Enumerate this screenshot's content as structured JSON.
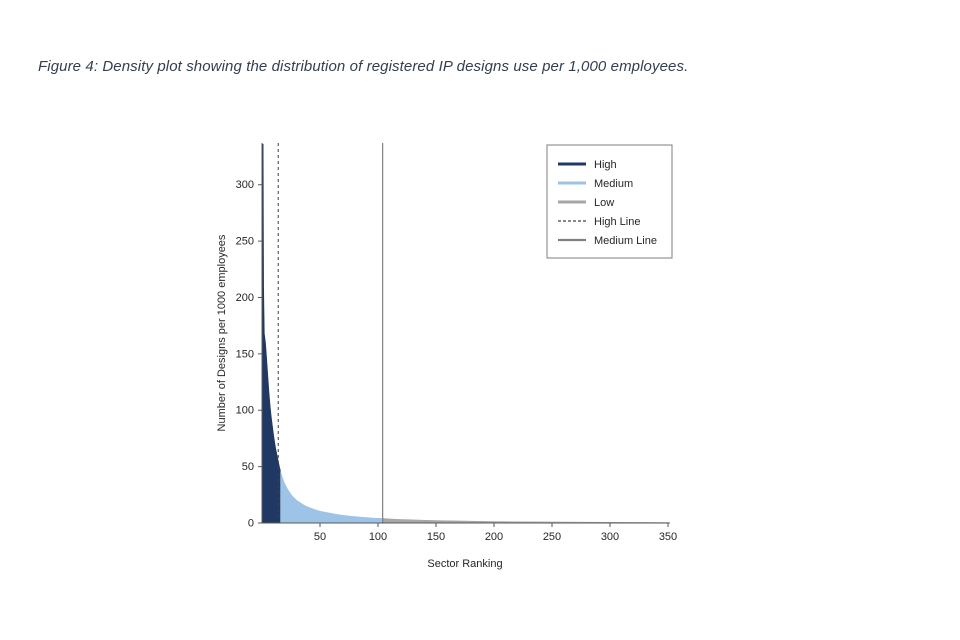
{
  "page": {
    "caption": "Figure 4: Density plot showing the distribution of registered IP designs use per 1,000 employees."
  },
  "chart_data": {
    "type": "area",
    "title": "",
    "xlabel": "Sector Ranking",
    "ylabel": "Number of Designs per 1000 employees",
    "xlim": [
      0,
      350
    ],
    "ylim": [
      0,
      337
    ],
    "x_ticks": [
      50,
      100,
      150,
      200,
      250,
      300,
      350
    ],
    "y_ticks": [
      0,
      50,
      100,
      150,
      200,
      250,
      300
    ],
    "grid": false,
    "legend_position": "top-right",
    "segments": [
      {
        "name": "High",
        "color": "#1f3864",
        "points": [
          [
            0,
            336
          ],
          [
            1,
            336
          ],
          [
            1.4,
            210
          ],
          [
            2,
            168
          ],
          [
            3,
            160
          ],
          [
            4,
            146
          ],
          [
            5,
            131
          ],
          [
            6,
            116
          ],
          [
            7,
            104
          ],
          [
            8,
            94
          ],
          [
            9,
            86
          ],
          [
            10,
            78
          ],
          [
            11,
            71
          ],
          [
            12,
            65
          ],
          [
            13,
            60
          ],
          [
            14,
            55
          ],
          [
            15,
            50
          ],
          [
            16,
            46
          ]
        ]
      },
      {
        "name": "Medium",
        "color": "#9dc3e6",
        "points": [
          [
            16,
            46
          ],
          [
            17,
            42
          ],
          [
            18,
            39
          ],
          [
            19,
            36
          ],
          [
            20,
            34
          ],
          [
            22,
            30
          ],
          [
            24,
            27
          ],
          [
            26,
            24
          ],
          [
            28,
            22
          ],
          [
            30,
            20
          ],
          [
            33,
            18
          ],
          [
            36,
            16
          ],
          [
            40,
            14
          ],
          [
            44,
            12.5
          ],
          [
            48,
            11
          ],
          [
            52,
            10
          ],
          [
            57,
            9
          ],
          [
            62,
            8
          ],
          [
            68,
            7
          ],
          [
            75,
            6.2
          ],
          [
            82,
            5.5
          ],
          [
            90,
            4.8
          ],
          [
            97,
            4.3
          ],
          [
            104,
            4
          ]
        ]
      },
      {
        "name": "Low",
        "color": "#a6a6a6",
        "points": [
          [
            104,
            4
          ],
          [
            110,
            3.6
          ],
          [
            118,
            3.2
          ],
          [
            126,
            2.9
          ],
          [
            135,
            2.6
          ],
          [
            145,
            2.3
          ],
          [
            155,
            2.1
          ],
          [
            170,
            1.8
          ],
          [
            185,
            1.5
          ],
          [
            200,
            1.3
          ],
          [
            220,
            1.1
          ],
          [
            240,
            0.95
          ],
          [
            260,
            0.85
          ],
          [
            280,
            0.75
          ],
          [
            300,
            0.65
          ],
          [
            320,
            0.55
          ],
          [
            350,
            0.45
          ]
        ]
      }
    ],
    "vlines": [
      {
        "name": "High Line",
        "x": 14,
        "style": "dashed",
        "color": "#404040"
      },
      {
        "name": "Medium Line",
        "x": 104,
        "style": "solid",
        "color": "#808080"
      }
    ],
    "legend": [
      {
        "label": "High",
        "color": "#1f3864",
        "dash": false
      },
      {
        "label": "Medium",
        "color": "#9dc3e6",
        "dash": false
      },
      {
        "label": "Low",
        "color": "#a6a6a6",
        "dash": false
      },
      {
        "label": "High Line",
        "color": "#404040",
        "dash": true
      },
      {
        "label": "Medium Line",
        "color": "#808080",
        "dash": false
      }
    ]
  },
  "colors": {
    "caption_text": "#333f50",
    "axis": "#595959",
    "tick_text": "#262626",
    "legend_border": "#7f7f7f",
    "background": "#ffffff"
  }
}
